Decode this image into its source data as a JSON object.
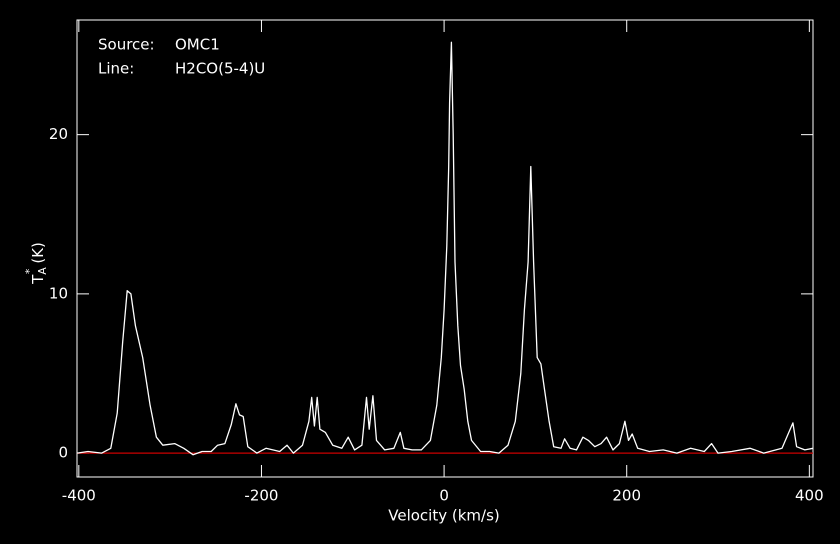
{
  "chart_data": {
    "type": "line",
    "annotations": [
      {
        "label": "Source:",
        "text": "OMC1"
      },
      {
        "label": "Line:",
        "text": "H2CO(5-4)U"
      }
    ],
    "xlabel": "Velocity (km/s)",
    "ylabel": {
      "main": "T",
      "sub": "A",
      "sup": "*",
      "unit": "(K)"
    },
    "xlim": [
      -402,
      404
    ],
    "ylim": [
      -1.5,
      27.2
    ],
    "xticks": [
      -400,
      -200,
      0,
      200,
      400
    ],
    "yticks": [
      0,
      10,
      20
    ],
    "reference_line": {
      "value": 0,
      "color": "#cc0000"
    },
    "series": [
      {
        "color": "#ffffff",
        "x": [
          -402,
          -390,
          -375,
          -365,
          -358,
          -352,
          -347,
          -343,
          -338,
          -330,
          -322,
          -315,
          -308,
          -295,
          -285,
          -275,
          -265,
          -255,
          -248,
          -240,
          -233,
          -228,
          -224,
          -220,
          -215,
          -205,
          -195,
          -180,
          -172,
          -165,
          -155,
          -148,
          -145,
          -142,
          -139,
          -136,
          -130,
          -122,
          -112,
          -105,
          -98,
          -90,
          -85,
          -82,
          -78,
          -74,
          -65,
          -55,
          -48,
          -44,
          -35,
          -25,
          -15,
          -8,
          -3,
          0,
          3,
          5,
          6,
          8,
          10,
          12,
          15,
          18,
          22,
          26,
          30,
          40,
          50,
          60,
          70,
          78,
          84,
          88,
          92,
          95,
          98,
          102,
          106,
          110,
          115,
          120,
          128,
          132,
          138,
          145,
          152,
          158,
          165,
          172,
          178,
          185,
          192,
          198,
          202,
          206,
          212,
          225,
          240,
          255,
          270,
          285,
          293,
          300,
          315,
          335,
          350,
          370,
          382,
          386,
          395,
          404
        ],
        "values": [
          0.0,
          0.1,
          0.0,
          0.3,
          2.5,
          7.0,
          10.2,
          10.0,
          8.0,
          6.0,
          3.0,
          1.0,
          0.5,
          0.6,
          0.3,
          -0.1,
          0.1,
          0.1,
          0.5,
          0.6,
          1.8,
          3.1,
          2.4,
          2.3,
          0.4,
          0.0,
          0.3,
          0.1,
          0.5,
          0.0,
          0.5,
          2.0,
          3.5,
          1.7,
          3.5,
          1.5,
          1.3,
          0.5,
          0.3,
          1.0,
          0.2,
          0.5,
          3.5,
          1.5,
          3.6,
          0.8,
          0.2,
          0.3,
          1.3,
          0.3,
          0.2,
          0.2,
          0.8,
          3.0,
          6.0,
          9.0,
          13.0,
          18.0,
          22.0,
          25.8,
          20.0,
          12.0,
          8.0,
          5.5,
          4.0,
          2.0,
          0.8,
          0.1,
          0.1,
          0.0,
          0.5,
          2.0,
          5.0,
          9.0,
          12.0,
          18.0,
          12.0,
          6.0,
          5.6,
          4.0,
          2.0,
          0.4,
          0.3,
          0.9,
          0.3,
          0.2,
          1.0,
          0.8,
          0.4,
          0.6,
          1.0,
          0.2,
          0.6,
          2.0,
          0.8,
          1.2,
          0.3,
          0.1,
          0.2,
          0.0,
          0.3,
          0.1,
          0.6,
          0.0,
          0.1,
          0.3,
          0.0,
          0.3,
          1.9,
          0.4,
          0.2,
          0.3
        ]
      }
    ]
  }
}
